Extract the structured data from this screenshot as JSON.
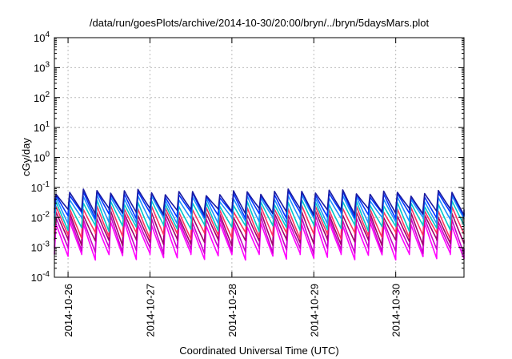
{
  "chart_data": {
    "type": "line",
    "title": "/data/run/goesPlots/archive/2014-10-30/20:00/bryn/../bryn/5daysMars.plot",
    "xlabel": "Coordinated Universal Time (UTC)",
    "ylabel": "cGy/day",
    "y_scale": "log",
    "y_ticks": [
      {
        "value": 0.0001,
        "base": "10",
        "exp": "-4"
      },
      {
        "value": 0.001,
        "base": "10",
        "exp": "-3"
      },
      {
        "value": 0.01,
        "base": "10",
        "exp": "-2"
      },
      {
        "value": 0.1,
        "base": "10",
        "exp": "-1"
      },
      {
        "value": 1,
        "base": "10",
        "exp": "0"
      },
      {
        "value": 10,
        "base": "10",
        "exp": "1"
      },
      {
        "value": 100,
        "base": "10",
        "exp": "2"
      },
      {
        "value": 1000,
        "base": "10",
        "exp": "3"
      },
      {
        "value": 10000,
        "base": "10",
        "exp": "4"
      }
    ],
    "ylim": [
      0.0001,
      10000
    ],
    "x_ticks": [
      "2014-10-26",
      "2014-10-27",
      "2014-10-28",
      "2014-10-29",
      "2014-10-30"
    ],
    "xlim": [
      "2014-10-25 20:00",
      "2014-10-30 20:00"
    ],
    "grid": true,
    "cycle_hours": 4,
    "series": [
      {
        "color": "#ff00ff",
        "peak": 0.006,
        "trough": 0.0005
      },
      {
        "color": "#cc00cc",
        "peak": 0.009,
        "trough": 0.0008
      },
      {
        "color": "#a0006e",
        "peak": 0.013,
        "trough": 0.0015
      },
      {
        "color": "#ff3060",
        "peak": 0.02,
        "trough": 0.0025
      },
      {
        "color": "#00c8c8",
        "peak": 0.03,
        "trough": 0.0045
      },
      {
        "color": "#1e90ff",
        "peak": 0.045,
        "trough": 0.008
      },
      {
        "color": "#0033ff",
        "peak": 0.06,
        "trough": 0.012
      },
      {
        "color": "#1a1aa0",
        "peak": 0.07,
        "trough": 0.016
      }
    ]
  }
}
